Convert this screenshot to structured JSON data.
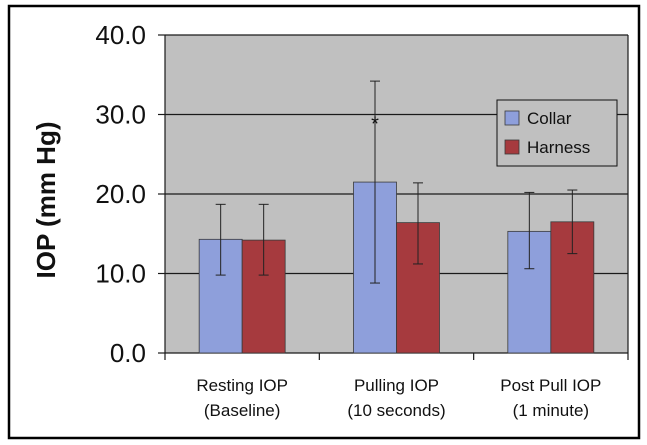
{
  "chart_data": {
    "type": "bar",
    "title": "",
    "xlabel": "",
    "ylabel": "IOP (mm Hg)",
    "ylim": [
      0,
      40
    ],
    "y_tick_labels": [
      "0.0",
      "10.0",
      "20.0",
      "30.0",
      "40.0"
    ],
    "grid": true,
    "legend_placement": "right",
    "categories": [
      [
        "Resting IOP",
        "(Baseline)"
      ],
      [
        "Pulling IOP",
        "(10 seconds)"
      ],
      [
        "Post Pull IOP",
        "(1 minute)"
      ]
    ],
    "series": [
      {
        "name": "Collar",
        "color": "#8e9fdb",
        "values": [
          14.3,
          21.5,
          15.3
        ],
        "error_low": [
          9.8,
          8.8,
          10.6
        ],
        "error_high": [
          18.7,
          34.2,
          20.2
        ]
      },
      {
        "name": "Harness",
        "color": "#a63a3e",
        "values": [
          14.2,
          16.4,
          16.5
        ],
        "error_low": [
          9.8,
          11.2,
          12.5
        ],
        "error_high": [
          18.7,
          21.4,
          20.5
        ]
      }
    ],
    "annotations": [
      {
        "text": "*",
        "category": "Pulling IOP",
        "series": "Collar",
        "y": 29.5
      }
    ]
  },
  "colors": {
    "plot_background": "#c0c0c0",
    "gridline": "#1a1a1a",
    "frame": "#000000"
  }
}
